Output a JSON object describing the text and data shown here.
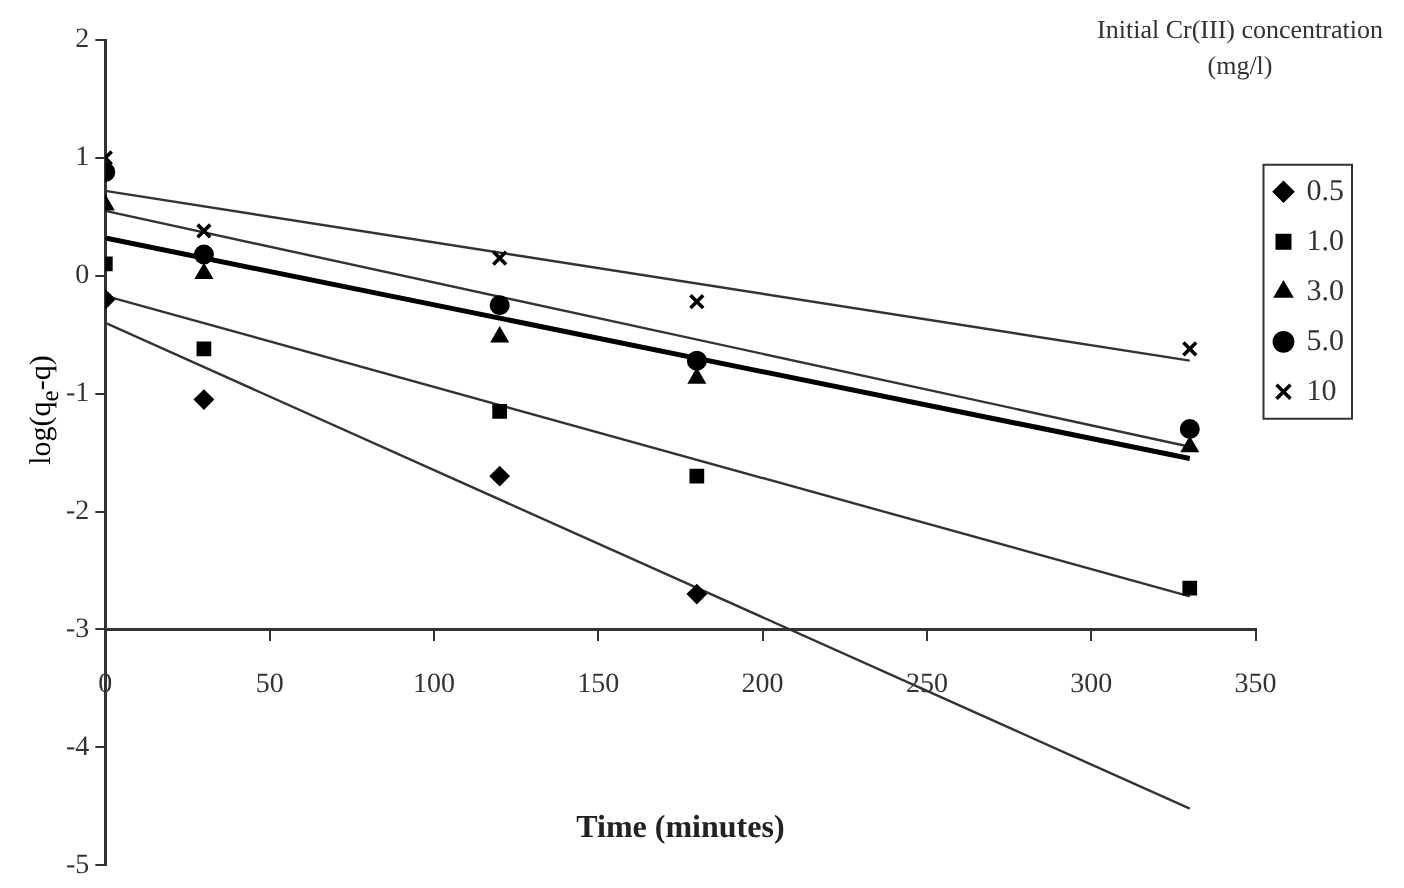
{
  "chart_data": {
    "type": "scatter",
    "xlabel": "Time (minutes)",
    "ylabel": "log(q$_{e}$-q)",
    "legend_title": "Initial Cr(III) concentration (mg/l)",
    "legend": "right",
    "grid": false,
    "xlim": [
      0,
      350
    ],
    "xticks": [
      0,
      50,
      100,
      150,
      200,
      250,
      300,
      350
    ],
    "ylim": [
      -5,
      2
    ],
    "yticks": [
      -5,
      -4,
      -3,
      -2,
      -1,
      0,
      1,
      2
    ],
    "series": [
      {
        "name": "0.5",
        "color": "#000000",
        "marker": "diamond",
        "x": [
          0,
          30,
          120,
          180
        ],
        "values": [
          -0.2,
          -1.05,
          -1.7,
          -2.7
        ]
      },
      {
        "name": "1.0",
        "color": "#000000",
        "marker": "square",
        "x": [
          0,
          30,
          120,
          180,
          330
        ],
        "values": [
          0.1,
          -0.62,
          -1.15,
          -1.7,
          -2.65
        ]
      },
      {
        "name": "3.0",
        "color": "#000000",
        "marker": "triangle",
        "x": [
          0,
          30,
          120,
          180,
          330
        ],
        "values": [
          0.6,
          0.02,
          -0.52,
          -0.87,
          -1.45
        ]
      },
      {
        "name": "5.0",
        "color": "#000000",
        "marker": "circle",
        "x": [
          0,
          30,
          120,
          180,
          330
        ],
        "values": [
          0.88,
          0.18,
          -0.25,
          -0.72,
          -1.3
        ]
      },
      {
        "name": "10",
        "color": "#000000",
        "marker": "cross",
        "x": [
          0,
          30,
          120,
          180,
          330
        ],
        "values": [
          1.0,
          0.38,
          0.15,
          -0.22,
          -0.62
        ]
      },
      {
        "type": "line",
        "color": "#333333",
        "marker": "none",
        "x": [
          0,
          330
        ],
        "values": [
          -0.4,
          -4.52
        ]
      },
      {
        "type": "line",
        "color": "#333333",
        "marker": "none",
        "x": [
          0,
          330
        ],
        "values": [
          -0.17,
          -2.72
        ]
      },
      {
        "type": "line",
        "color": "#333333",
        "marker": "none",
        "x": [
          0,
          330
        ],
        "values": [
          0.55,
          -1.45
        ]
      },
      {
        "type": "line",
        "color": "#000000",
        "marker": "none",
        "x": [
          0,
          330
        ],
        "values": [
          0.32,
          -1.55
        ]
      },
      {
        "type": "line",
        "color": "#333333",
        "marker": "none",
        "x": [
          0,
          330
        ],
        "values": [
          0.72,
          -0.72
        ]
      }
    ]
  }
}
